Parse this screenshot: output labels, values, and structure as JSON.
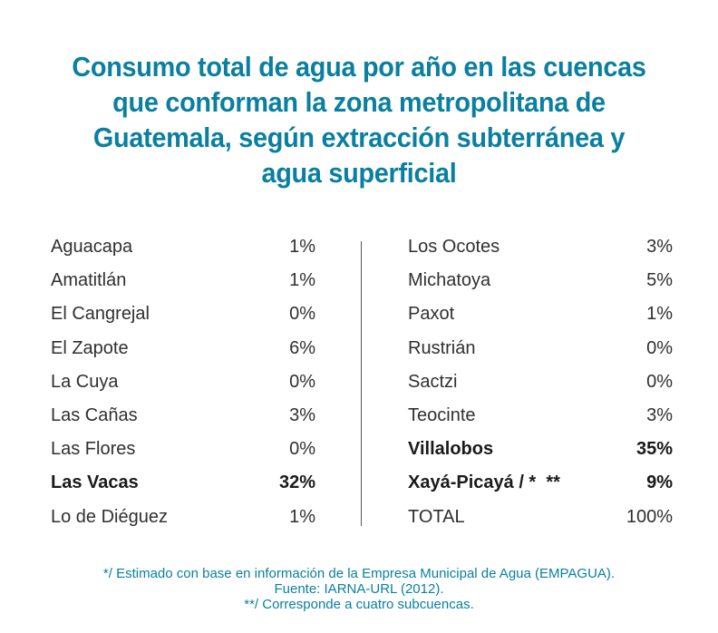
{
  "title": {
    "lines": [
      "Consumo total de agua por año en las cuencas",
      "que conforman la zona metropolitana de",
      "Guatemala, según extracción subterránea y",
      "agua superficial"
    ]
  },
  "left_column": [
    {
      "name": "Aguacapa",
      "value": "1%",
      "bold": false
    },
    {
      "name": "Amatitlán",
      "value": "1%",
      "bold": false
    },
    {
      "name": "El Cangrejal",
      "value": "0%",
      "bold": false
    },
    {
      "name": "El Zapote",
      "value": "6%",
      "bold": false
    },
    {
      "name": "La Cuya",
      "value": "0%",
      "bold": false
    },
    {
      "name": "Las Cañas",
      "value": "3%",
      "bold": false
    },
    {
      "name": "Las Flores",
      "value": "0%",
      "bold": false
    },
    {
      "name": "Las Vacas",
      "value": "32%",
      "bold": true
    },
    {
      "name": "Lo de Diéguez",
      "value": "1%",
      "bold": false
    }
  ],
  "right_column": [
    {
      "name": "Los Ocotes",
      "value": "3%",
      "bold": false
    },
    {
      "name": "Michatoya",
      "value": "5%",
      "bold": false
    },
    {
      "name": "Paxot",
      "value": "1%",
      "bold": false
    },
    {
      "name": "Rustrián",
      "value": "0%",
      "bold": false
    },
    {
      "name": "Sactzi",
      "value": "0%",
      "bold": false
    },
    {
      "name": "Teocinte",
      "value": "3%",
      "bold": false
    },
    {
      "name": "Villalobos",
      "value": "35%",
      "bold": true
    },
    {
      "name": "Xayá-Picayá / *  **",
      "value": "9%",
      "bold": true
    },
    {
      "name": "TOTAL",
      "value": "100%",
      "bold": false
    }
  ],
  "footnotes": [
    "*/ Estimado con base en información de la Empresa Municipal de Agua (EMPAGUA).",
    "Fuente: IARNA-URL (2012).",
    "**/ Corresponde a cuatro subcuencas."
  ],
  "colors": {
    "title": "#0a7fa0",
    "text": "#303030",
    "footnote": "#0a7fa0"
  }
}
